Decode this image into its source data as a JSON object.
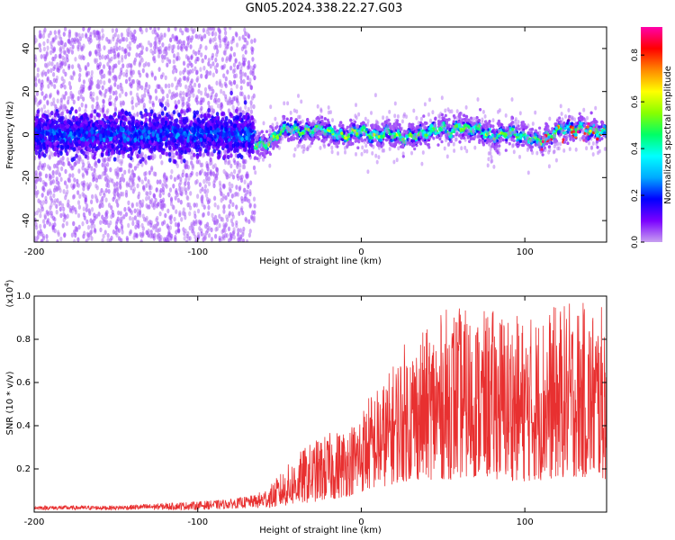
{
  "title": "GN05.2024.338.22.27.G03",
  "chart_data": [
    {
      "type": "heatmap",
      "title": "GN05.2024.338.22.27.G03",
      "xlabel": "Height of straight line (km)",
      "ylabel": "Frequency (Hz)",
      "xlim": [
        -200,
        150
      ],
      "ylim": [
        -50,
        50
      ],
      "xticks": [
        -200,
        -100,
        0,
        100
      ],
      "yticks": [
        -40,
        -20,
        0,
        20,
        40
      ],
      "colorbar": {
        "label": "Normalized spectral amplitude",
        "range": [
          0,
          0.92
        ],
        "ticks": [
          0.0,
          0.2,
          0.4,
          0.6,
          0.8
        ],
        "colormap": [
          "#c8a0f0",
          "#7a00ff",
          "#0000ff",
          "#00aaff",
          "#00ffff",
          "#00ff66",
          "#88ff00",
          "#ffff00",
          "#ff8800",
          "#ff0000",
          "#ff00aa"
        ]
      },
      "ridge": {
        "x": [
          -65,
          -60,
          -55,
          -50,
          -45,
          -40,
          -35,
          -30,
          -25,
          -20,
          -15,
          -10,
          -5,
          0,
          5,
          10,
          15,
          20,
          25,
          30,
          35,
          40,
          45,
          50,
          55,
          60,
          65,
          70,
          75,
          80,
          85,
          90,
          95,
          100,
          105,
          110,
          115,
          120,
          125,
          130,
          135,
          140,
          145,
          150
        ],
        "y": [
          -4,
          -5,
          -3,
          1,
          3,
          2,
          1,
          2,
          3,
          1,
          0,
          -1,
          1,
          2,
          0,
          -1,
          1,
          0,
          -2,
          -1,
          0,
          1,
          2,
          3,
          1,
          4,
          2,
          3,
          1,
          -1,
          0,
          1,
          0,
          -1,
          -2,
          -3,
          -1,
          2,
          3,
          2,
          3,
          1,
          2,
          1
        ]
      },
      "regions": [
        {
          "x_range": [
            -200,
            -65
          ],
          "description": "broadband scatter",
          "y_spread": [
            -50,
            50
          ],
          "dense_band": [
            -10,
            10
          ]
        },
        {
          "x_range": [
            -65,
            150
          ],
          "description": "narrow ridge",
          "y_spread": [
            -8,
            8
          ]
        }
      ]
    },
    {
      "type": "line",
      "xlabel": "Height of straight line (km)",
      "ylabel": "SNR (10 * v/v)",
      "scale_label": "(x10",
      "scale_exponent": "4",
      "xlim": [
        -200,
        150
      ],
      "ylim": [
        0,
        1.0
      ],
      "xticks": [
        -200,
        -100,
        0,
        100
      ],
      "yticks": [
        0.2,
        0.4,
        0.6,
        0.8,
        1.0
      ],
      "color": "#e83030",
      "envelope": {
        "x": [
          -200,
          -150,
          -100,
          -80,
          -65,
          -55,
          -45,
          -35,
          -25,
          -15,
          -5,
          5,
          15,
          25,
          40,
          55,
          70,
          85,
          100,
          115,
          130,
          150
        ],
        "upper": [
          0.03,
          0.03,
          0.05,
          0.06,
          0.08,
          0.13,
          0.22,
          0.3,
          0.35,
          0.38,
          0.42,
          0.55,
          0.62,
          0.78,
          0.85,
          0.97,
          0.92,
          0.95,
          0.9,
          0.95,
          0.98,
          0.95
        ],
        "lower": [
          0.01,
          0.01,
          0.01,
          0.015,
          0.02,
          0.02,
          0.03,
          0.04,
          0.05,
          0.06,
          0.08,
          0.1,
          0.12,
          0.14,
          0.15,
          0.15,
          0.16,
          0.15,
          0.14,
          0.15,
          0.16,
          0.15
        ]
      }
    }
  ]
}
